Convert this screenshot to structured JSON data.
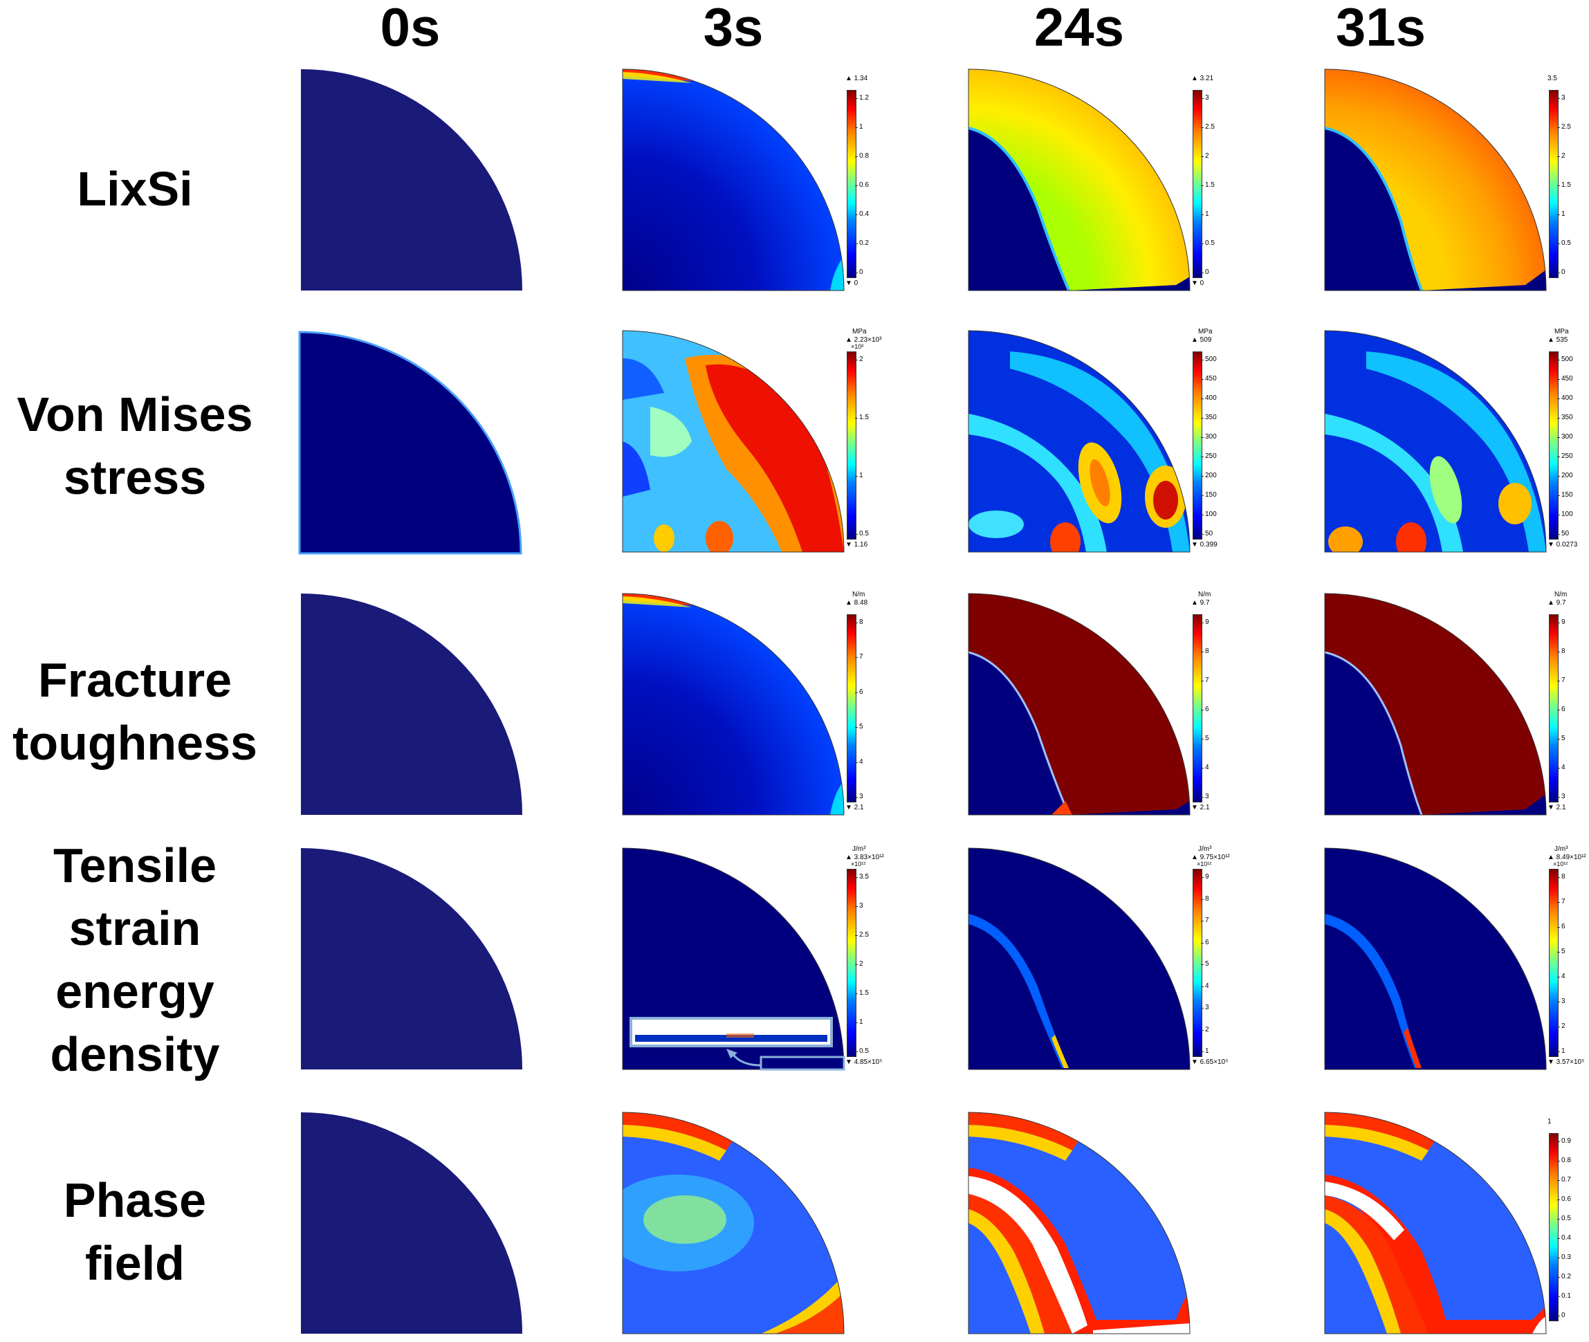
{
  "columns": [
    "0s",
    "3s",
    "24s",
    "31s"
  ],
  "rows": [
    {
      "lines": [
        "LixSi"
      ]
    },
    {
      "lines": [
        "Von Mises",
        "stress"
      ]
    },
    {
      "lines": [
        "Fracture",
        "toughness"
      ]
    },
    {
      "lines": [
        "Tensile",
        "strain",
        "energy",
        "density"
      ]
    },
    {
      "lines": [
        "Phase",
        "field"
      ]
    }
  ],
  "colorbars": {
    "r0c1": {
      "unit": "",
      "max": "▲ 1.34",
      "mult": "",
      "min": "▼ 0",
      "ticks": [
        "1.2",
        "1",
        "0.8",
        "0.6",
        "0.4",
        "0.2",
        "0"
      ]
    },
    "r0c2": {
      "unit": "",
      "max": "▲ 3.21",
      "mult": "",
      "min": "▼ 0",
      "ticks": [
        "3",
        "2.5",
        "2",
        "1.5",
        "1",
        "0.5",
        "0"
      ]
    },
    "r0c3": {
      "unit": "",
      "max": "3.5",
      "mult": "",
      "min": "",
      "ticks": [
        "3",
        "2.5",
        "2",
        "1.5",
        "1",
        "0.5",
        "0"
      ]
    },
    "r1c1": {
      "unit": "MPa",
      "max": "▲ 2.23×10³",
      "mult": "×10³",
      "min": "▼ 1.16",
      "ticks": [
        "2",
        "1.5",
        "1",
        "0.5"
      ]
    },
    "r1c2": {
      "unit": "MPa",
      "max": "▲ 509",
      "mult": "",
      "min": "▼ 0.399",
      "ticks": [
        "500",
        "450",
        "400",
        "350",
        "300",
        "250",
        "200",
        "150",
        "100",
        "50"
      ]
    },
    "r1c3": {
      "unit": "MPa",
      "max": "▲ 535",
      "mult": "",
      "min": "▼ 0.0273",
      "ticks": [
        "500",
        "450",
        "400",
        "350",
        "300",
        "250",
        "200",
        "150",
        "100",
        "50"
      ]
    },
    "r2c1": {
      "unit": "N/m",
      "max": "▲ 8.48",
      "mult": "",
      "min": "▼ 2.1",
      "ticks": [
        "8",
        "7",
        "6",
        "5",
        "4",
        "3"
      ]
    },
    "r2c2": {
      "unit": "N/m",
      "max": "▲ 9.7",
      "mult": "",
      "min": "▼ 2.1",
      "ticks": [
        "9",
        "8",
        "7",
        "6",
        "5",
        "4",
        "3"
      ]
    },
    "r2c3": {
      "unit": "N/m",
      "max": "▲ 9.7",
      "mult": "",
      "min": "▼ 2.1",
      "ticks": [
        "9",
        "8",
        "7",
        "6",
        "5",
        "4",
        "3"
      ]
    },
    "r3c1": {
      "unit": "J/m³",
      "max": "▲ 3.83×10¹²",
      "mult": "×10¹²",
      "min": "▼ 4.85×10⁵",
      "ticks": [
        "3.5",
        "3",
        "2.5",
        "2",
        "1.5",
        "1",
        "0.5"
      ]
    },
    "r3c2": {
      "unit": "J/m³",
      "max": "▲ 9.75×10¹²",
      "mult": "×10¹²",
      "min": "▼ 6.65×10⁵",
      "ticks": [
        "9",
        "8",
        "7",
        "6",
        "5",
        "4",
        "3",
        "2",
        "1"
      ]
    },
    "r3c3": {
      "unit": "J/m³",
      "max": "▲ 8.49×10¹²",
      "mult": "×10¹²",
      "min": "▼ 3.57×10⁵",
      "ticks": [
        "8",
        "7",
        "6",
        "5",
        "4",
        "3",
        "2",
        "1"
      ]
    },
    "r4c3": {
      "unit": "",
      "max": "1",
      "mult": "",
      "min": "",
      "ticks": [
        "0.9",
        "0.8",
        "0.7",
        "0.6",
        "0.5",
        "0.4",
        "0.3",
        "0.2",
        "0.1",
        "0"
      ]
    }
  }
}
